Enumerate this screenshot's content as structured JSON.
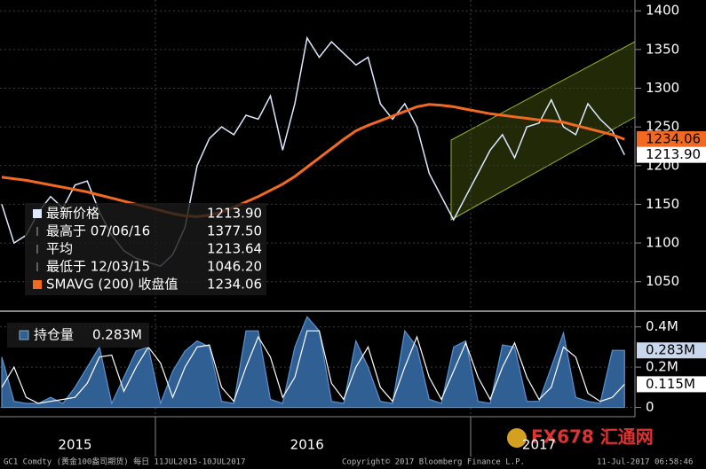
{
  "chart_data": [
    {
      "type": "line",
      "categories": [
        null,
        null,
        null,
        null,
        null,
        null,
        "2015",
        null,
        null,
        null,
        null,
        null,
        null,
        null,
        null,
        null,
        null,
        null,
        null,
        null,
        null,
        null,
        null,
        null,
        null,
        "2016",
        null,
        null,
        null,
        null,
        null,
        null,
        null,
        null,
        null,
        null,
        null,
        null,
        null,
        null,
        null,
        null,
        null,
        null,
        "2017",
        null,
        null,
        null,
        null,
        null,
        null,
        null
      ],
      "series": [
        {
          "name": "最新价格",
          "color": "#dce9ff",
          "values": [
            1150,
            1100,
            1110,
            1140,
            1160,
            1145,
            1175,
            1180,
            1140,
            1110,
            1090,
            1080,
            1075,
            1070,
            1085,
            1120,
            1200,
            1235,
            1250,
            1240,
            1265,
            1260,
            1290,
            1220,
            1280,
            1365,
            1340,
            1360,
            1345,
            1330,
            1340,
            1280,
            1260,
            1280,
            1250,
            1190,
            1160,
            1130,
            1160,
            1190,
            1220,
            1240,
            1210,
            1250,
            1255,
            1285,
            1250,
            1240,
            1280,
            1260,
            1245,
            1213.9
          ],
          "last": {
            "value": 1213.9,
            "label": "1213.90"
          }
        },
        {
          "name": "SMAVG (200) 收盘值",
          "color": "#f26a21",
          "values": [
            1185,
            1183,
            1181,
            1178,
            1175,
            1172,
            1169,
            1166,
            1162,
            1158,
            1154,
            1150,
            1146,
            1142,
            1138,
            1135,
            1134,
            1136,
            1140,
            1146,
            1153,
            1160,
            1168,
            1176,
            1186,
            1198,
            1210,
            1222,
            1234,
            1245,
            1252,
            1258,
            1264,
            1270,
            1276,
            1279,
            1278,
            1276,
            1273,
            1270,
            1267,
            1265,
            1263,
            1261,
            1259,
            1258,
            1256,
            1252,
            1248,
            1244,
            1240,
            1234.06
          ],
          "last": {
            "value": 1234.06,
            "label": "1234.06"
          }
        }
      ],
      "stats": [
        {
          "label": "最高于 07/06/16",
          "value": {
            "value": 1377.5,
            "label": "1377.50"
          }
        },
        {
          "label": "平均",
          "value": {
            "value": 1213.64,
            "label": "1213.64"
          }
        },
        {
          "label": "最低于 12/03/15",
          "value": {
            "value": 1046.2,
            "label": "1046.20"
          }
        }
      ],
      "ylim": [
        1013,
        1414
      ],
      "yticks": [
        1050,
        1100,
        1150,
        1200,
        1250,
        1300,
        1350,
        1400
      ],
      "grid": true
    },
    {
      "type": "area",
      "series": [
        {
          "name": "持仓量",
          "color": "#2f5f93",
          "values": [
            0.25,
            0.03,
            0.02,
            0.02,
            0.05,
            0.02,
            0.1,
            0.2,
            0.3,
            0.02,
            0.15,
            0.28,
            0.3,
            0.02,
            0.18,
            0.28,
            0.33,
            0.3,
            0.03,
            0.02,
            0.38,
            0.38,
            0.04,
            0.02,
            0.3,
            0.45,
            0.38,
            0.03,
            0.02,
            0.33,
            0.2,
            0.03,
            0.02,
            0.38,
            0.3,
            0.04,
            0.02,
            0.3,
            0.33,
            0.03,
            0.02,
            0.31,
            0.3,
            0.03,
            0.03,
            0.2,
            0.37,
            0.05,
            0.03,
            0.02,
            0.283,
            0.283
          ],
          "last": {
            "value": 0.283,
            "label": "0.283M"
          }
        },
        {
          "color": "#ffffff",
          "values": [
            0.1,
            0.2,
            0.05,
            0.02,
            0.03,
            0.04,
            0.05,
            0.12,
            0.25,
            0.26,
            0.08,
            0.2,
            0.3,
            0.22,
            0.05,
            0.2,
            0.3,
            0.31,
            0.1,
            0.03,
            0.2,
            0.35,
            0.25,
            0.05,
            0.15,
            0.38,
            0.38,
            0.12,
            0.04,
            0.2,
            0.3,
            0.1,
            0.03,
            0.2,
            0.35,
            0.15,
            0.04,
            0.18,
            0.32,
            0.15,
            0.04,
            0.2,
            0.32,
            0.15,
            0.04,
            0.1,
            0.3,
            0.25,
            0.07,
            0.03,
            0.05,
            0.115
          ],
          "last": {
            "value": 0.115,
            "label": "0.115M"
          }
        }
      ],
      "ylim": [
        -0.046,
        0.46
      ],
      "yticks": [
        {
          "value": 0,
          "label": "0"
        },
        {
          "value": 0.2,
          "label": "0.2M"
        },
        {
          "value": 0.4,
          "label": "0.4M"
        }
      ],
      "grid": true
    }
  ],
  "footer": {
    "source": "GC1 Comdty (黄金100盎司期货) 每日 11JUL2015-10JUL2017",
    "copyright": "Copyright© 2017 Bloomberg Finance L.P.",
    "timestamp": "11-Jul-2017 06:58:46"
  },
  "watermark": "FX678 汇通网"
}
